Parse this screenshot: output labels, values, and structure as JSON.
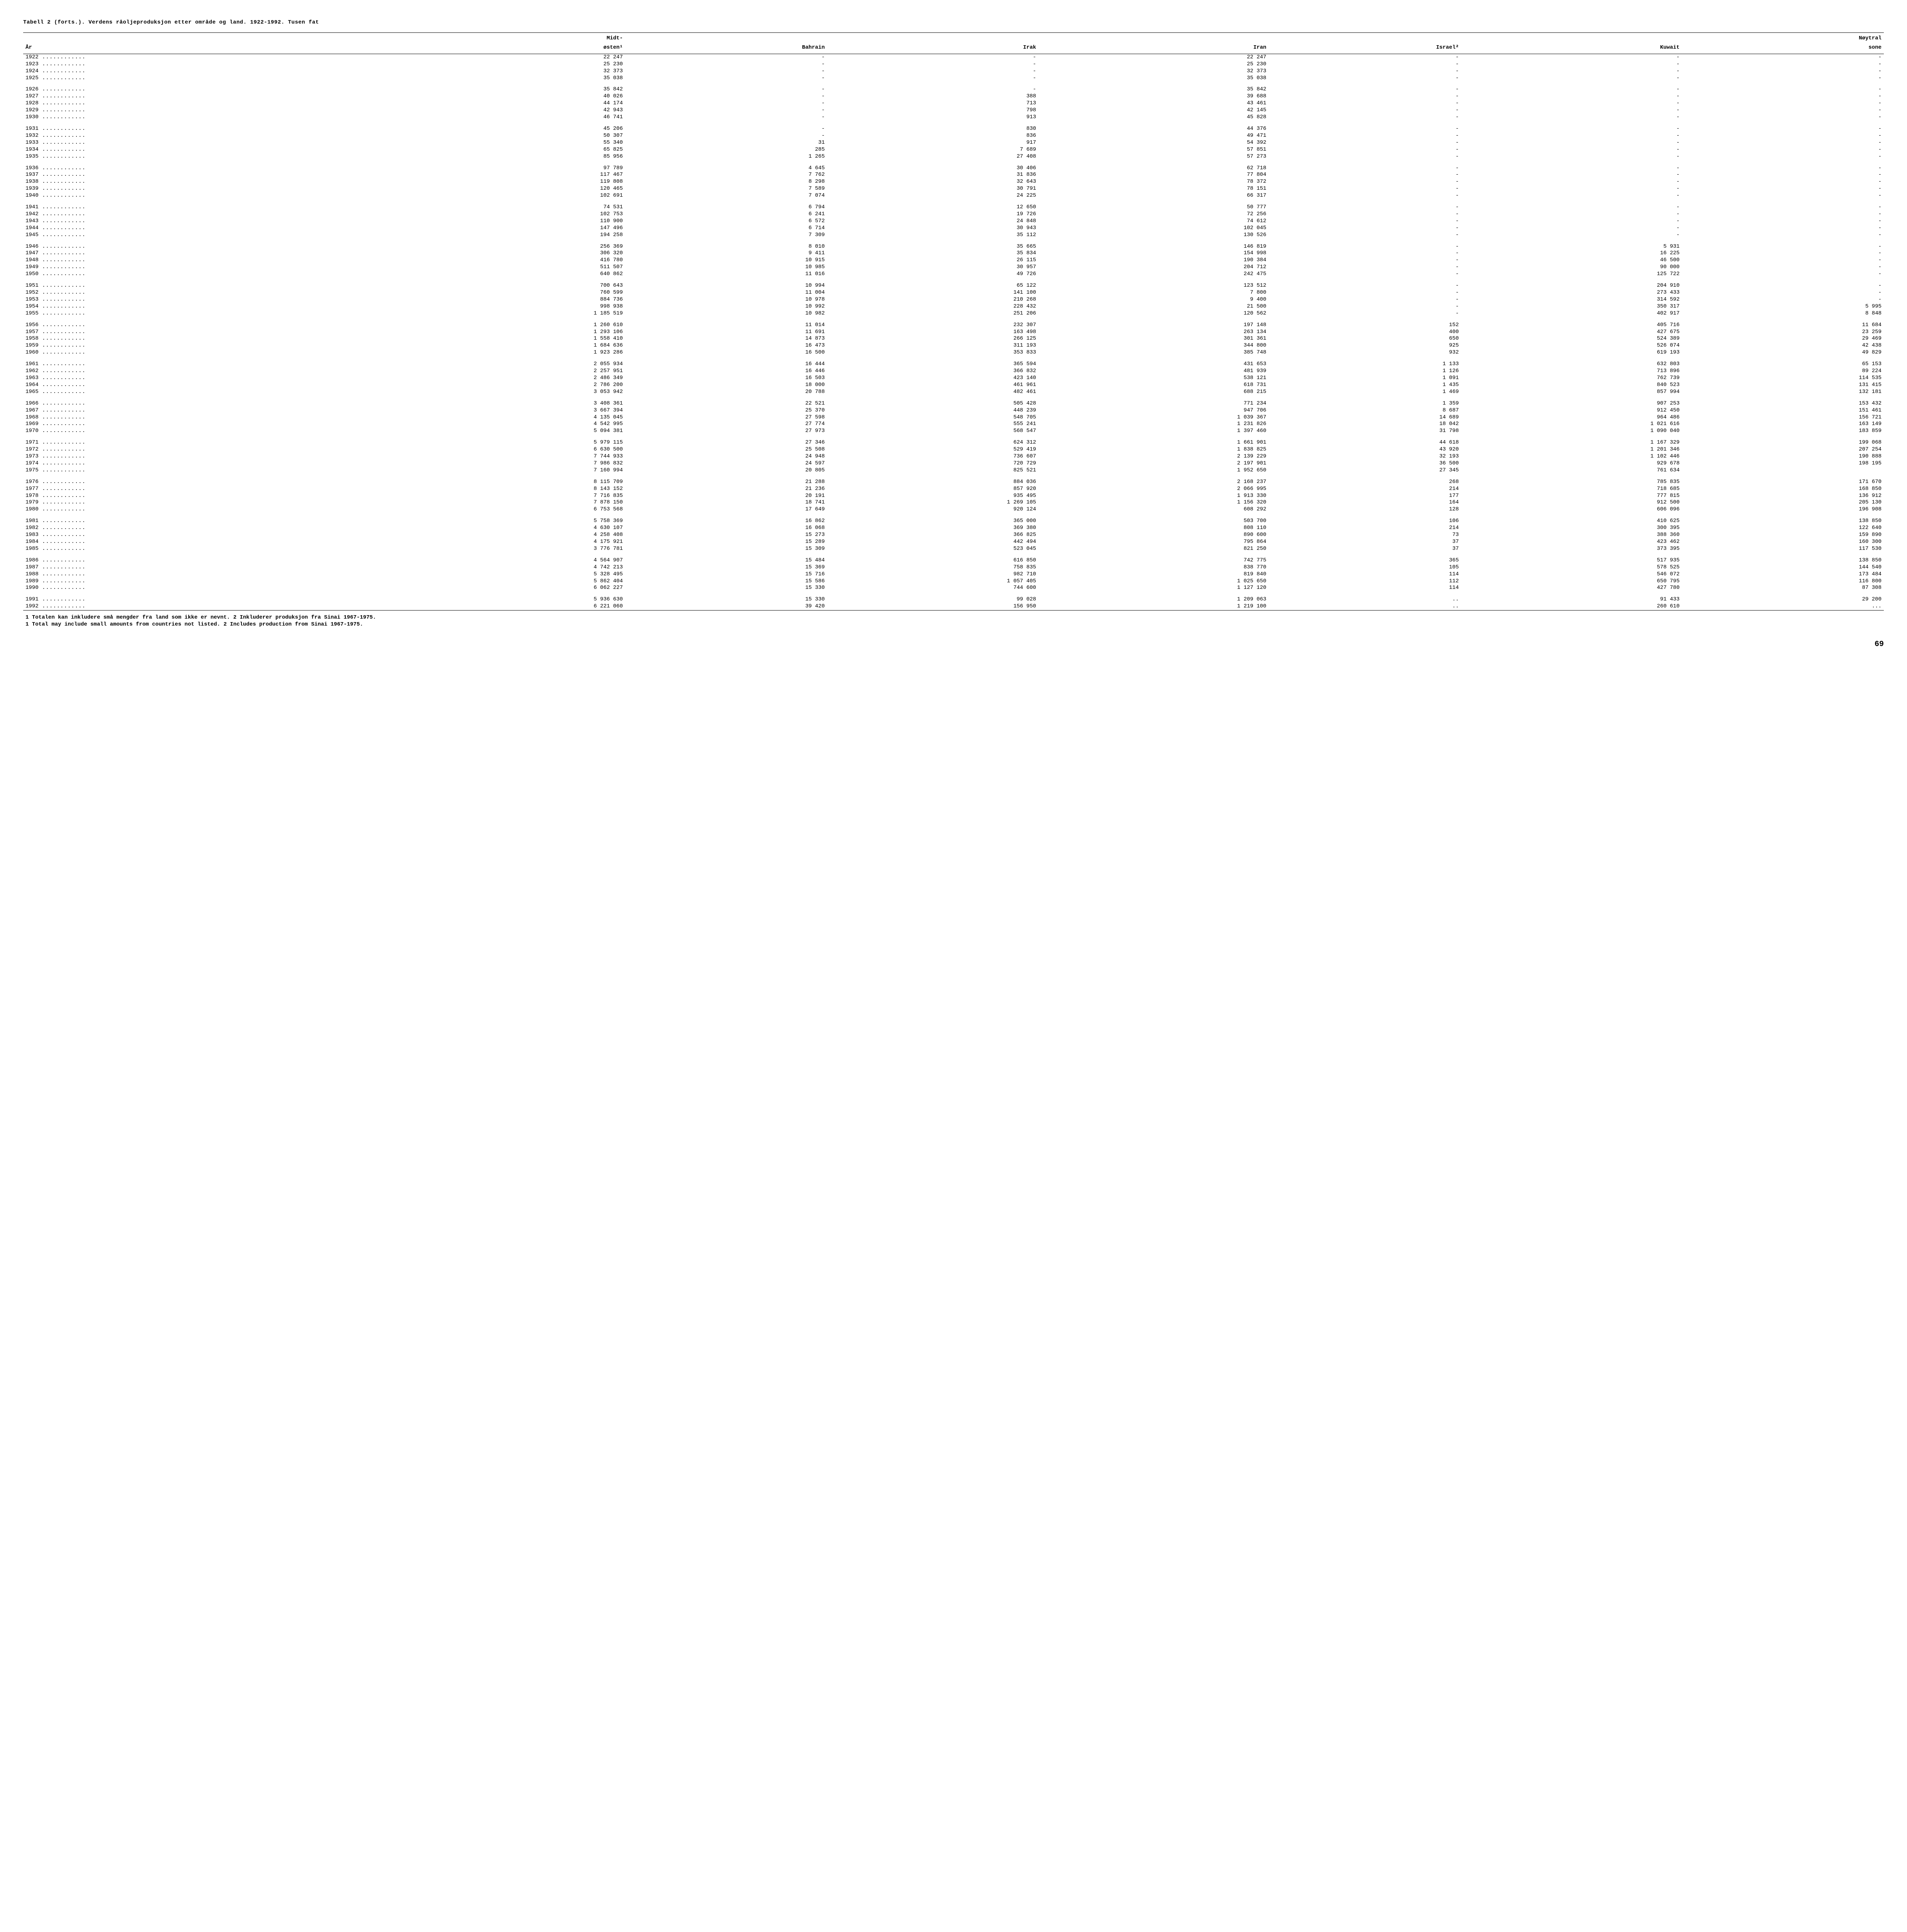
{
  "title": "Tabell 2 (forts.).  Verdens råoljeproduksjon etter område og land.  1922-1992.  Tusen fat",
  "columns": [
    "År",
    "Midt-\nøsten¹",
    "Bahrain",
    "Irak",
    "Iran",
    "Israel²",
    "Kuwait",
    "Nøytral\nsone"
  ],
  "col_widths": [
    "200px",
    "95px",
    "95px",
    "100px",
    "110px",
    "90px",
    "105px",
    "95px"
  ],
  "footnotes": [
    "1 Totalen kan inkludere små mengder fra land som ikke er nevnt. 2 Inkluderer produksjon fra Sinai 1967-1975.",
    "1 Total may include small amounts from countries not listed. 2 Includes production from Sinai 1967-1975."
  ],
  "page_number": "69",
  "groups": [
    [
      [
        "1922",
        "22 247",
        "-",
        "-",
        "22 247",
        "-",
        "-",
        "-"
      ],
      [
        "1923",
        "25 230",
        "-",
        "-",
        "25 230",
        "-",
        "-",
        "-"
      ],
      [
        "1924",
        "32 373",
        "-",
        "-",
        "32 373",
        "-",
        "-",
        "-"
      ],
      [
        "1925",
        "35 038",
        "-",
        "-",
        "35 038",
        "-",
        "-",
        "-"
      ]
    ],
    [
      [
        "1926",
        "35 842",
        "-",
        "-",
        "35 842",
        "-",
        "-",
        "-"
      ],
      [
        "1927",
        "40 026",
        "-",
        "388",
        "39 688",
        "-",
        "-",
        "-"
      ],
      [
        "1928",
        "44 174",
        "-",
        "713",
        "43 461",
        "-",
        "-",
        "-"
      ],
      [
        "1929",
        "42 943",
        "-",
        "798",
        "42 145",
        "-",
        "-",
        "-"
      ],
      [
        "1930",
        "46 741",
        "-",
        "913",
        "45 828",
        "-",
        "-",
        "-"
      ]
    ],
    [
      [
        "1931",
        "45 206",
        "-",
        "830",
        "44 376",
        "-",
        "-",
        "-"
      ],
      [
        "1932",
        "50 307",
        "-",
        "836",
        "49 471",
        "-",
        "-",
        "-"
      ],
      [
        "1933",
        "55 340",
        "31",
        "917",
        "54 392",
        "-",
        "-",
        "-"
      ],
      [
        "1934",
        "65 825",
        "285",
        "7 689",
        "57 851",
        "-",
        "-",
        "-"
      ],
      [
        "1935",
        "85 956",
        "1 265",
        "27 408",
        "57 273",
        "-",
        "-",
        "-"
      ]
    ],
    [
      [
        "1936",
        "97 789",
        "4 645",
        "30 406",
        "62 718",
        "-",
        "-",
        "-"
      ],
      [
        "1937",
        "117 467",
        "7 762",
        "31 836",
        "77 804",
        "-",
        "-",
        "-"
      ],
      [
        "1938",
        "119 808",
        "8 298",
        "32 643",
        "78 372",
        "-",
        "-",
        "-"
      ],
      [
        "1939",
        "120 465",
        "7 589",
        "30 791",
        "78 151",
        "-",
        "-",
        "-"
      ],
      [
        "1940",
        "102 691",
        "7 074",
        "24 225",
        "66 317",
        "-",
        "-",
        "-"
      ]
    ],
    [
      [
        "1941",
        "74 531",
        "6 794",
        "12 650",
        "50 777",
        "-",
        "-",
        "-"
      ],
      [
        "1942",
        "102 753",
        "6 241",
        "19 726",
        "72 256",
        "-",
        "-",
        "-"
      ],
      [
        "1943",
        "110 900",
        "6 572",
        "24 848",
        "74 612",
        "-",
        "-",
        "-"
      ],
      [
        "1944",
        "147 496",
        "6 714",
        "30 943",
        "102 045",
        "-",
        "-",
        "-"
      ],
      [
        "1945",
        "194 258",
        "7 309",
        "35 112",
        "130 526",
        "-",
        "-",
        "-"
      ]
    ],
    [
      [
        "1946",
        "256 369",
        "8 010",
        "35 665",
        "146 819",
        "-",
        "5 931",
        "-"
      ],
      [
        "1947",
        "306 320",
        "9 411",
        "35 834",
        "154 998",
        "-",
        "16 225",
        "-"
      ],
      [
        "1948",
        "416 780",
        "10 915",
        "26 115",
        "190 384",
        "-",
        "46 500",
        "-"
      ],
      [
        "1949",
        "511 507",
        "10 985",
        "30 957",
        "204 712",
        "-",
        "90 000",
        "-"
      ],
      [
        "1950",
        "640 862",
        "11 016",
        "49 726",
        "242 475",
        "-",
        "125 722",
        "-"
      ]
    ],
    [
      [
        "1951",
        "700 643",
        "10 994",
        "65 122",
        "123 512",
        "-",
        "204 910",
        "-"
      ],
      [
        "1952",
        "760 599",
        "11 004",
        "141 100",
        "7 800",
        "-",
        "273 433",
        "-"
      ],
      [
        "1953",
        "884 736",
        "10 978",
        "210 268",
        "9 400",
        "-",
        "314 592",
        "-"
      ],
      [
        "1954",
        "998 938",
        "10 992",
        "228 432",
        "21 500",
        "-",
        "350 317",
        "5 995"
      ],
      [
        "1955",
        "1 185 519",
        "10 982",
        "251 206",
        "120 562",
        "-",
        "402 917",
        "8 848"
      ]
    ],
    [
      [
        "1956",
        "1 260 610",
        "11 014",
        "232 307",
        "197 148",
        "152",
        "405 716",
        "11 684"
      ],
      [
        "1957",
        "1 293 106",
        "11 691",
        "163 498",
        "263 134",
        "400",
        "427 675",
        "23 259"
      ],
      [
        "1958",
        "1 558 410",
        "14 873",
        "266 125",
        "301 361",
        "650",
        "524 389",
        "29 469"
      ],
      [
        "1959",
        "1 684 636",
        "16 473",
        "311 193",
        "344 800",
        "925",
        "526 074",
        "42 438"
      ],
      [
        "1960",
        "1 923 286",
        "16 500",
        "353 833",
        "385 748",
        "932",
        "619 193",
        "49 829"
      ]
    ],
    [
      [
        "1961",
        "2 055 934",
        "16 444",
        "365 594",
        "431 653",
        "1 133",
        "632 803",
        "65 153"
      ],
      [
        "1962",
        "2 257 951",
        "16 446",
        "366 832",
        "481 939",
        "1 126",
        "713 896",
        "89 224"
      ],
      [
        "1963",
        "2 486 349",
        "16 503",
        "423 140",
        "538 121",
        "1 091",
        "762 739",
        "114 535"
      ],
      [
        "1964",
        "2 786 200",
        "18 000",
        "461 961",
        "618 731",
        "1 435",
        "840 523",
        "131 415"
      ],
      [
        "1965",
        "3 053 942",
        "20 788",
        "482 461",
        "688 215",
        "1 469",
        "857 994",
        "132 181"
      ]
    ],
    [
      [
        "1966",
        "3 408 361",
        "22 521",
        "505 428",
        "771 234",
        "1 359",
        "907 253",
        "153 432"
      ],
      [
        "1967",
        "3 667 394",
        "25 370",
        "448 239",
        "947 706",
        "8 687",
        "912 450",
        "151 461"
      ],
      [
        "1968",
        "4 135 045",
        "27 598",
        "548 705",
        "1 039 367",
        "14 689",
        "964 486",
        "156 721"
      ],
      [
        "1969",
        "4 542 995",
        "27 774",
        "555 241",
        "1 231 826",
        "18 042",
        "1 021 616",
        "163 149"
      ],
      [
        "1970",
        "5 094 381",
        "27 973",
        "568 547",
        "1 397 460",
        "31 798",
        "1 090 040",
        "183 859"
      ]
    ],
    [
      [
        "1971",
        "5 979 115",
        "27 346",
        "624 312",
        "1 661 901",
        "44 618",
        "1 167 329",
        "199 068"
      ],
      [
        "1972",
        "6 630 500",
        "25 508",
        "529 419",
        "1 838 825",
        "43 920",
        "1 201 346",
        "207 254"
      ],
      [
        "1973",
        "7 744 933",
        "24 948",
        "736 607",
        "2 139 229",
        "32 193",
        "1 102 446",
        "190 888"
      ],
      [
        "1974",
        "7 986 832",
        "24 597",
        "720 729",
        "2 197 901",
        "36 500",
        "929 678",
        "198 195"
      ],
      [
        "1975",
        "7 160 994",
        "20 805",
        "825 521",
        "1 952 650",
        "27 345",
        "761 634",
        ""
      ]
    ],
    [
      [
        "1976",
        "8 115 709",
        "21 288",
        "884 036",
        "2 168 237",
        "268",
        "785 835",
        "171 670"
      ],
      [
        "1977",
        "8 143 152",
        "21 236",
        "857 920",
        "2 066 995",
        "214",
        "718 685",
        "168 850"
      ],
      [
        "1978",
        "7 716 835",
        "20 191",
        "935 495",
        "1 913 330",
        "177",
        "777 815",
        "136 912"
      ],
      [
        "1979",
        "7 878 150",
        "18 741",
        "1 269 105",
        "1 156 320",
        "164",
        "912 500",
        "205 130"
      ],
      [
        "1980",
        "6 753 568",
        "17 649",
        "920 124",
        "608 292",
        "128",
        "606 096",
        "196 908"
      ]
    ],
    [
      [
        "1981",
        "5 758 369",
        "16 862",
        "365 000",
        "503 700",
        "106",
        "410 625",
        "138 850"
      ],
      [
        "1982",
        "4 630 107",
        "16 068",
        "369 380",
        "808 110",
        "214",
        "300 395",
        "122 640"
      ],
      [
        "1983",
        "4 258 408",
        "15 273",
        "366 825",
        "890 600",
        "73",
        "388 360",
        "159 890"
      ],
      [
        "1984",
        "4 175 921",
        "15 289",
        "442 494",
        "795 864",
        "37",
        "423 462",
        "160 300"
      ],
      [
        "1985",
        "3 776 781",
        "15 309",
        "523 045",
        "821 250",
        "37",
        "373 395",
        "117 530"
      ]
    ],
    [
      [
        "1986",
        "4 564 907",
        "15 484",
        "616 850",
        "742 775",
        "365",
        "517 935",
        "138 850"
      ],
      [
        "1987",
        "4 742 213",
        "15 369",
        "758 835",
        "838 770",
        "105",
        "578 525",
        "144 540"
      ],
      [
        "1988",
        "5 328 495",
        "15 716",
        "982 710",
        "819 840",
        "114",
        "546 072",
        "173 484"
      ],
      [
        "1989",
        "5 862 404",
        "15 586",
        "1 057 405",
        "1 025 650",
        "112",
        "650 795",
        "116 800"
      ],
      [
        "1990",
        "6 062 227",
        "15 330",
        "744 600",
        "1 127 120",
        "114",
        "427 780",
        "87 308"
      ]
    ],
    [
      [
        "1991",
        "5 936 630",
        "15 330",
        "99 028",
        "1 209 063",
        "..",
        "91 433",
        "29 200"
      ],
      [
        "1992",
        "6 221 060",
        "39 420",
        "156 950",
        "1 219 100",
        "..",
        "260 610",
        "..."
      ]
    ]
  ]
}
